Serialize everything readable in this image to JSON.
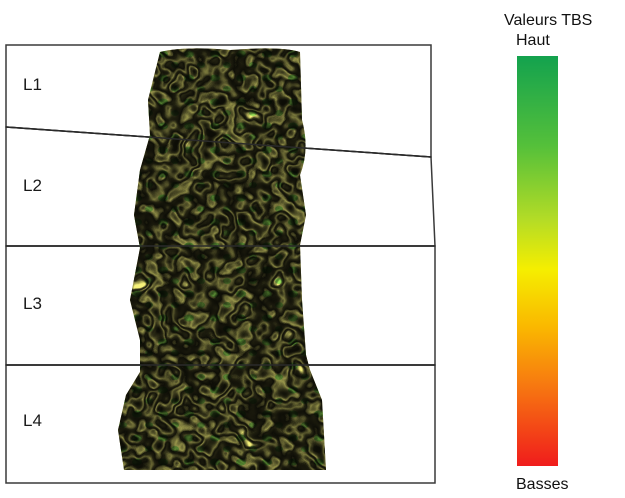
{
  "vertebrae": [
    {
      "label": "L1"
    },
    {
      "label": "L2"
    },
    {
      "label": "L3"
    },
    {
      "label": "L4"
    }
  ],
  "scale": {
    "title": "Valeurs TBS",
    "high_label": "Haut",
    "low_label": "Basses",
    "colors": [
      "#13a24e",
      "#55c03a",
      "#b4dc26",
      "#f5ee00",
      "#fab800",
      "#f77a10",
      "#f01c1c"
    ]
  },
  "colors": {
    "outline": "#3a3a3a",
    "texture_light": "#f6f27a",
    "texture_mid": "#f2a81e",
    "texture_dark": "#e84418",
    "texture_green": "#6fdc48"
  }
}
